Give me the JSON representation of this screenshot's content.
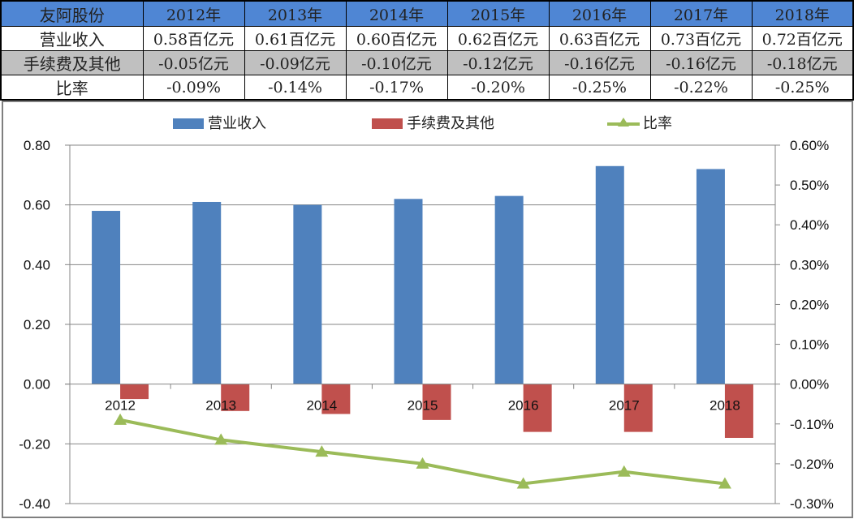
{
  "table": {
    "corner": "友阿股份",
    "years": [
      "2012年",
      "2013年",
      "2014年",
      "2015年",
      "2016年",
      "2017年",
      "2018年"
    ],
    "rows": [
      {
        "label": "营业收入",
        "values": [
          "0.58百亿元",
          "0.61百亿元",
          "0.60百亿元",
          "0.62百亿元",
          "0.63百亿元",
          "0.73百亿元",
          "0.72百亿元"
        ]
      },
      {
        "label": "手续费及其他",
        "values": [
          "-0.05亿元",
          "-0.09亿元",
          "-0.10亿元",
          "-0.12亿元",
          "-0.16亿元",
          "-0.16亿元",
          "-0.18亿元"
        ]
      },
      {
        "label": "比率",
        "values": [
          "-0.09%",
          "-0.14%",
          "-0.17%",
          "-0.20%",
          "-0.25%",
          "-0.22%",
          "-0.25%"
        ]
      }
    ]
  },
  "chart_data": {
    "type": "bar",
    "title": "",
    "categories": [
      "2012",
      "2013",
      "2014",
      "2015",
      "2016",
      "2017",
      "2018"
    ],
    "series": [
      {
        "name": "营业收入",
        "type": "bar",
        "axis": "left",
        "color": "#4f81bd",
        "values": [
          0.58,
          0.61,
          0.6,
          0.62,
          0.63,
          0.73,
          0.72
        ]
      },
      {
        "name": "手续费及其他",
        "type": "bar",
        "axis": "left",
        "color": "#c0504d",
        "values": [
          -0.05,
          -0.09,
          -0.1,
          -0.12,
          -0.16,
          -0.16,
          -0.18
        ]
      },
      {
        "name": "比率",
        "type": "line",
        "axis": "right",
        "color": "#9bbb59",
        "marker": "triangle",
        "values": [
          -0.09,
          -0.14,
          -0.17,
          -0.2,
          -0.25,
          -0.22,
          -0.25
        ]
      }
    ],
    "left_axis": {
      "ylim": [
        -0.4,
        0.8
      ],
      "ticks": [
        "0.80",
        "0.60",
        "0.40",
        "0.20",
        "0.00",
        "-0.20",
        "-0.40"
      ]
    },
    "right_axis": {
      "ylim": [
        -0.3,
        0.6
      ],
      "unit": "%",
      "ticks": [
        "0.60%",
        "0.50%",
        "0.40%",
        "0.30%",
        "0.20%",
        "0.10%",
        "0.00%",
        "-0.10%",
        "-0.20%",
        "-0.30%"
      ]
    },
    "grid": true,
    "legend_position": "top"
  }
}
